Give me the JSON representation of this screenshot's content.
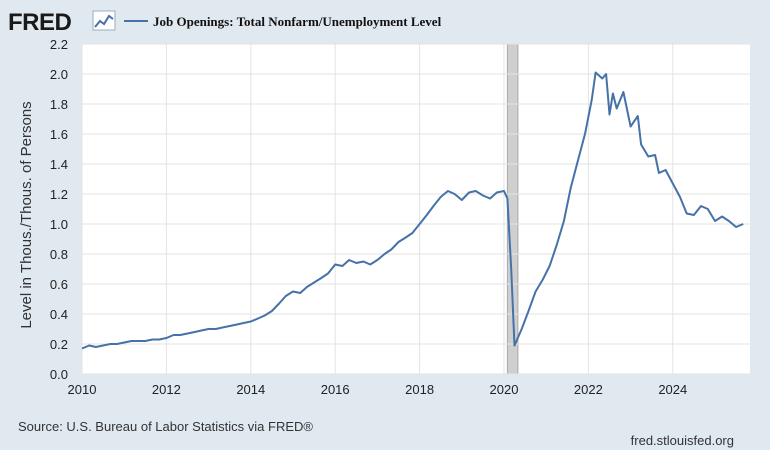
{
  "logo": {
    "text": "FRED",
    "icon": "fred-chart-icon"
  },
  "chart_data": {
    "type": "line",
    "title": "Job Openings: Total Nonfarm/Unemployment Level",
    "xlabel": "",
    "ylabel": "Level in Thous./Thous. of Persons",
    "xlim": [
      2010.0,
      2025.83
    ],
    "ylim": [
      0,
      2.2
    ],
    "x_ticks": [
      "2010",
      "2012",
      "2014",
      "2016",
      "2018",
      "2020",
      "2022",
      "2024"
    ],
    "y_ticks": [
      "0.0",
      "0.2",
      "0.4",
      "0.6",
      "0.8",
      "1.0",
      "1.2",
      "1.4",
      "1.6",
      "1.8",
      "2.0",
      "2.2"
    ],
    "recession_shading": [
      2020.08,
      2020.33
    ],
    "grid": true,
    "line_color": "#4572a7",
    "series": [
      {
        "name": "Job Openings: Total Nonfarm/Unemployment Level",
        "points": [
          [
            2010.0,
            0.17
          ],
          [
            2010.17,
            0.19
          ],
          [
            2010.33,
            0.18
          ],
          [
            2010.5,
            0.19
          ],
          [
            2010.67,
            0.2
          ],
          [
            2010.83,
            0.2
          ],
          [
            2011.0,
            0.21
          ],
          [
            2011.17,
            0.22
          ],
          [
            2011.33,
            0.22
          ],
          [
            2011.5,
            0.22
          ],
          [
            2011.67,
            0.23
          ],
          [
            2011.83,
            0.23
          ],
          [
            2012.0,
            0.24
          ],
          [
            2012.17,
            0.26
          ],
          [
            2012.33,
            0.26
          ],
          [
            2012.5,
            0.27
          ],
          [
            2012.67,
            0.28
          ],
          [
            2012.83,
            0.29
          ],
          [
            2013.0,
            0.3
          ],
          [
            2013.17,
            0.3
          ],
          [
            2013.33,
            0.31
          ],
          [
            2013.5,
            0.32
          ],
          [
            2013.67,
            0.33
          ],
          [
            2013.83,
            0.34
          ],
          [
            2014.0,
            0.35
          ],
          [
            2014.17,
            0.37
          ],
          [
            2014.33,
            0.39
          ],
          [
            2014.5,
            0.42
          ],
          [
            2014.67,
            0.47
          ],
          [
            2014.83,
            0.52
          ],
          [
            2015.0,
            0.55
          ],
          [
            2015.17,
            0.54
          ],
          [
            2015.33,
            0.58
          ],
          [
            2015.5,
            0.61
          ],
          [
            2015.67,
            0.64
          ],
          [
            2015.83,
            0.67
          ],
          [
            2016.0,
            0.73
          ],
          [
            2016.17,
            0.72
          ],
          [
            2016.33,
            0.76
          ],
          [
            2016.5,
            0.74
          ],
          [
            2016.67,
            0.75
          ],
          [
            2016.83,
            0.73
          ],
          [
            2017.0,
            0.76
          ],
          [
            2017.17,
            0.8
          ],
          [
            2017.33,
            0.83
          ],
          [
            2017.5,
            0.88
          ],
          [
            2017.67,
            0.91
          ],
          [
            2017.83,
            0.94
          ],
          [
            2018.0,
            1.0
          ],
          [
            2018.17,
            1.06
          ],
          [
            2018.33,
            1.12
          ],
          [
            2018.5,
            1.18
          ],
          [
            2018.67,
            1.22
          ],
          [
            2018.83,
            1.2
          ],
          [
            2019.0,
            1.16
          ],
          [
            2019.17,
            1.21
          ],
          [
            2019.33,
            1.22
          ],
          [
            2019.5,
            1.19
          ],
          [
            2019.67,
            1.17
          ],
          [
            2019.83,
            1.21
          ],
          [
            2020.0,
            1.22
          ],
          [
            2020.08,
            1.17
          ],
          [
            2020.17,
            0.7
          ],
          [
            2020.25,
            0.19
          ],
          [
            2020.42,
            0.3
          ],
          [
            2020.58,
            0.42
          ],
          [
            2020.75,
            0.55
          ],
          [
            2020.92,
            0.63
          ],
          [
            2021.08,
            0.72
          ],
          [
            2021.25,
            0.86
          ],
          [
            2021.42,
            1.02
          ],
          [
            2021.58,
            1.24
          ],
          [
            2021.75,
            1.42
          ],
          [
            2021.92,
            1.6
          ],
          [
            2022.08,
            1.83
          ],
          [
            2022.17,
            2.01
          ],
          [
            2022.33,
            1.97
          ],
          [
            2022.42,
            2.0
          ],
          [
            2022.5,
            1.73
          ],
          [
            2022.58,
            1.87
          ],
          [
            2022.67,
            1.77
          ],
          [
            2022.83,
            1.88
          ],
          [
            2023.0,
            1.65
          ],
          [
            2023.17,
            1.72
          ],
          [
            2023.25,
            1.53
          ],
          [
            2023.42,
            1.45
          ],
          [
            2023.58,
            1.46
          ],
          [
            2023.67,
            1.34
          ],
          [
            2023.83,
            1.36
          ],
          [
            2024.0,
            1.27
          ],
          [
            2024.17,
            1.18
          ],
          [
            2024.33,
            1.07
          ],
          [
            2024.5,
            1.06
          ],
          [
            2024.67,
            1.12
          ],
          [
            2024.83,
            1.1
          ],
          [
            2025.0,
            1.02
          ],
          [
            2025.17,
            1.05
          ],
          [
            2025.33,
            1.02
          ],
          [
            2025.5,
            0.98
          ],
          [
            2025.67,
            1.0
          ]
        ]
      }
    ]
  },
  "footer": {
    "source": "Source: U.S. Bureau of Labor Statistics via FRED®",
    "url": "fred.stlouisfed.org"
  }
}
